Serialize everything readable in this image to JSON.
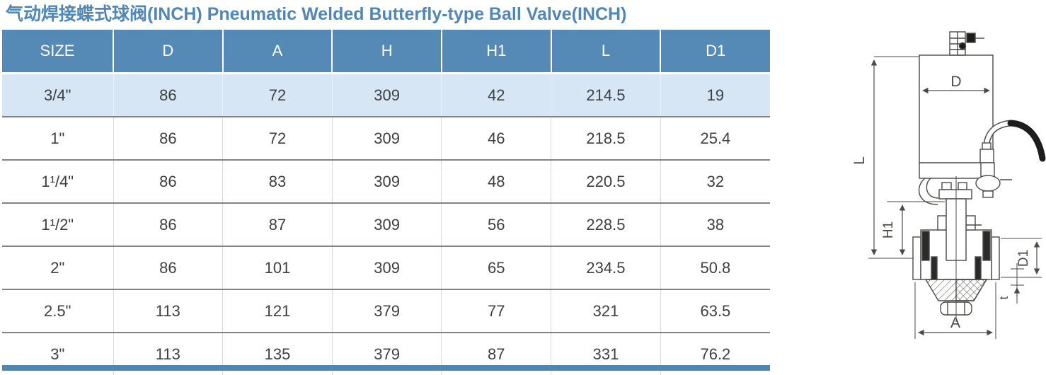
{
  "title": "气动焊接蝶式球阀(INCH) Pneumatic Welded Butterfly-type Ball Valve(INCH)",
  "table": {
    "columns": [
      "SIZE",
      "D",
      "A",
      "H",
      "H1",
      "L",
      "D1"
    ],
    "rows": [
      [
        "3/4\"",
        "86",
        "72",
        "309",
        "42",
        "214.5",
        "19"
      ],
      [
        "1\"",
        "86",
        "72",
        "309",
        "46",
        "218.5",
        "25.4"
      ],
      [
        "1¹/4\"",
        "86",
        "83",
        "309",
        "48",
        "220.5",
        "32"
      ],
      [
        "1¹/2\"",
        "86",
        "87",
        "309",
        "56",
        "228.5",
        "38"
      ],
      [
        "2\"",
        "86",
        "101",
        "309",
        "65",
        "234.5",
        "50.8"
      ],
      [
        "2.5\"",
        "113",
        "121",
        "379",
        "77",
        "321",
        "63.5"
      ],
      [
        "3\"",
        "113",
        "135",
        "379",
        "87",
        "331",
        "76.2"
      ]
    ]
  },
  "diagram": {
    "labels": {
      "D": "D",
      "L": "L",
      "H1": "H1",
      "D1": "D1",
      "t": "t",
      "A": "A"
    }
  },
  "colors": {
    "title_text": "#4e87b8",
    "header_bg": "#5589b6",
    "header_text": "#ffffff",
    "first_row_bg": "#d6e6f5",
    "row_bg": "#ffffff",
    "row_separator": "#7f8487",
    "column_separator": "#d9d9d9",
    "bottom_bar": "#4e87b5",
    "cell_text": "#3f3f3f",
    "diagram_stroke": "#4d4a46"
  }
}
